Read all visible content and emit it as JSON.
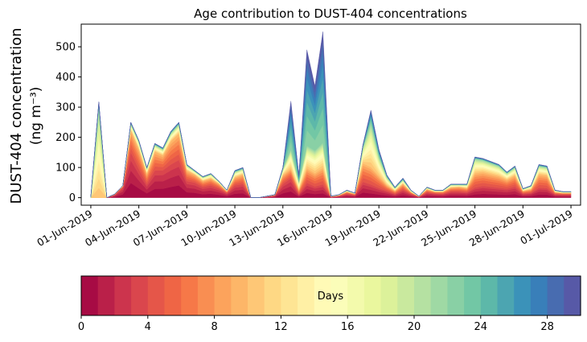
{
  "chart_data": {
    "type": "area",
    "stacked": true,
    "title": "Age contribution to DUST-404 concentrations",
    "ylabel_line1": "DUST-404 concentration",
    "ylabel_line2": "(ng m⁻³)",
    "xlabel": "",
    "ylim": [
      -25,
      575
    ],
    "yticks": [
      0,
      100,
      200,
      300,
      400,
      500
    ],
    "xlim_day": [
      -0.6,
      30.6
    ],
    "xticks": [
      {
        "day": 0,
        "label": "01-Jun-2019"
      },
      {
        "day": 3,
        "label": "04-Jun-2019"
      },
      {
        "day": 6,
        "label": "07-Jun-2019"
      },
      {
        "day": 9,
        "label": "10-Jun-2019"
      },
      {
        "day": 12,
        "label": "13-Jun-2019"
      },
      {
        "day": 15,
        "label": "16-Jun-2019"
      },
      {
        "day": 18,
        "label": "19-Jun-2019"
      },
      {
        "day": 21,
        "label": "22-Jun-2019"
      },
      {
        "day": 24,
        "label": "25-Jun-2019"
      },
      {
        "day": 27,
        "label": "28-Jun-2019"
      },
      {
        "day": 30,
        "label": "01-Jul-2019"
      }
    ],
    "x_days": [
      0,
      0.5,
      1,
      1.5,
      2,
      2.5,
      3,
      3.5,
      4,
      4.5,
      5,
      5.5,
      6,
      6.5,
      7,
      7.5,
      8,
      8.5,
      9,
      9.5,
      10,
      10.5,
      11,
      11.5,
      12,
      12.5,
      13,
      13.5,
      14,
      14.5,
      15,
      15.5,
      16,
      16.5,
      17,
      17.5,
      18,
      18.5,
      19,
      19.5,
      20,
      20.5,
      21,
      21.5,
      22,
      22.5,
      23,
      23.5,
      24,
      24.5,
      25,
      25.5,
      26,
      26.5,
      27,
      27.5,
      28,
      28.5,
      29,
      29.5,
      30
    ],
    "total": [
      5,
      318,
      0,
      12,
      40,
      250,
      190,
      100,
      180,
      165,
      220,
      250,
      110,
      90,
      70,
      80,
      55,
      25,
      90,
      100,
      0,
      0,
      5,
      10,
      100,
      320,
      75,
      490,
      370,
      550,
      5,
      10,
      25,
      15,
      175,
      290,
      160,
      75,
      35,
      65,
      25,
      5,
      35,
      25,
      25,
      45,
      45,
      45,
      135,
      130,
      120,
      110,
      85,
      105,
      30,
      40,
      110,
      105,
      25,
      20,
      20
    ],
    "age_frac": [
      [
        0,
        0,
        0.95,
        0.8,
        0.85,
        0.6,
        0.5,
        0.45,
        0.5,
        0.55,
        0.5,
        0.5,
        0.5,
        0.55,
        0.5,
        0.5,
        0.55,
        0.6,
        0.45,
        0.45,
        0.4,
        0.5,
        0.75,
        0.7,
        0.45,
        0.2,
        0.15,
        0.1,
        0.1,
        0.08,
        0.55,
        0.55,
        0.5,
        0.55,
        0.3,
        0.15,
        0.2,
        0.3,
        0.35,
        0.4,
        0.5,
        0.55,
        0.5,
        0.55,
        0.5,
        0.45,
        0.45,
        0.4,
        0.25,
        0.3,
        0.3,
        0.3,
        0.35,
        0.35,
        0.45,
        0.4,
        0.3,
        0.3,
        0.45,
        0.5,
        0.5
      ],
      [
        0,
        0,
        0.04,
        0.15,
        0.12,
        0.3,
        0.35,
        0.35,
        0.35,
        0.3,
        0.35,
        0.35,
        0.32,
        0.3,
        0.3,
        0.3,
        0.3,
        0.25,
        0.3,
        0.32,
        0.35,
        0.3,
        0.15,
        0.2,
        0.3,
        0.1,
        0.2,
        0.1,
        0.12,
        0.1,
        0.25,
        0.25,
        0.3,
        0.3,
        0.35,
        0.2,
        0.25,
        0.25,
        0.3,
        0.3,
        0.25,
        0.25,
        0.3,
        0.25,
        0.3,
        0.3,
        0.35,
        0.3,
        0.35,
        0.35,
        0.35,
        0.35,
        0.35,
        0.35,
        0.3,
        0.3,
        0.4,
        0.4,
        0.3,
        0.3,
        0.3
      ],
      [
        0,
        0.95,
        0.01,
        0.05,
        0.03,
        0.08,
        0.13,
        0.17,
        0.12,
        0.12,
        0.12,
        0.12,
        0.15,
        0.12,
        0.17,
        0.17,
        0.12,
        0.12,
        0.2,
        0.18,
        0.2,
        0.15,
        0.08,
        0.08,
        0.2,
        0.2,
        0.35,
        0.15,
        0.2,
        0.15,
        0.15,
        0.15,
        0.15,
        0.12,
        0.3,
        0.5,
        0.4,
        0.35,
        0.25,
        0.2,
        0.2,
        0.15,
        0.15,
        0.15,
        0.15,
        0.2,
        0.15,
        0.25,
        0.35,
        0.3,
        0.3,
        0.3,
        0.25,
        0.25,
        0.2,
        0.25,
        0.25,
        0.25,
        0.2,
        0.15,
        0.15
      ],
      [
        1,
        0.05,
        0,
        0,
        0,
        0.02,
        0.02,
        0.03,
        0.03,
        0.03,
        0.03,
        0.03,
        0.03,
        0.03,
        0.03,
        0.03,
        0.03,
        0.03,
        0.05,
        0.05,
        0.05,
        0.05,
        0.02,
        0.02,
        0.05,
        0.5,
        0.3,
        0.65,
        0.58,
        0.67,
        0.05,
        0.05,
        0.05,
        0.03,
        0.05,
        0.15,
        0.15,
        0.1,
        0.1,
        0.1,
        0.05,
        0.05,
        0.05,
        0.05,
        0.05,
        0.05,
        0.05,
        0.05,
        0.05,
        0.05,
        0.05,
        0.05,
        0.05,
        0.05,
        0.05,
        0.05,
        0.05,
        0.05,
        0.05,
        0.05,
        0.05
      ]
    ],
    "colorbar": {
      "label": "Days",
      "min": 0,
      "max": 30,
      "ticks": [
        0,
        4,
        8,
        12,
        16,
        20,
        24,
        28
      ],
      "bins": 30,
      "colormap": "Spectral",
      "colors": [
        "#9e0142",
        "#d53e4f",
        "#f46d43",
        "#fdae61",
        "#fee08b",
        "#ffffbf",
        "#e6f598",
        "#abdda4",
        "#66c2a5",
        "#3288bd",
        "#5e4fa2"
      ]
    }
  }
}
